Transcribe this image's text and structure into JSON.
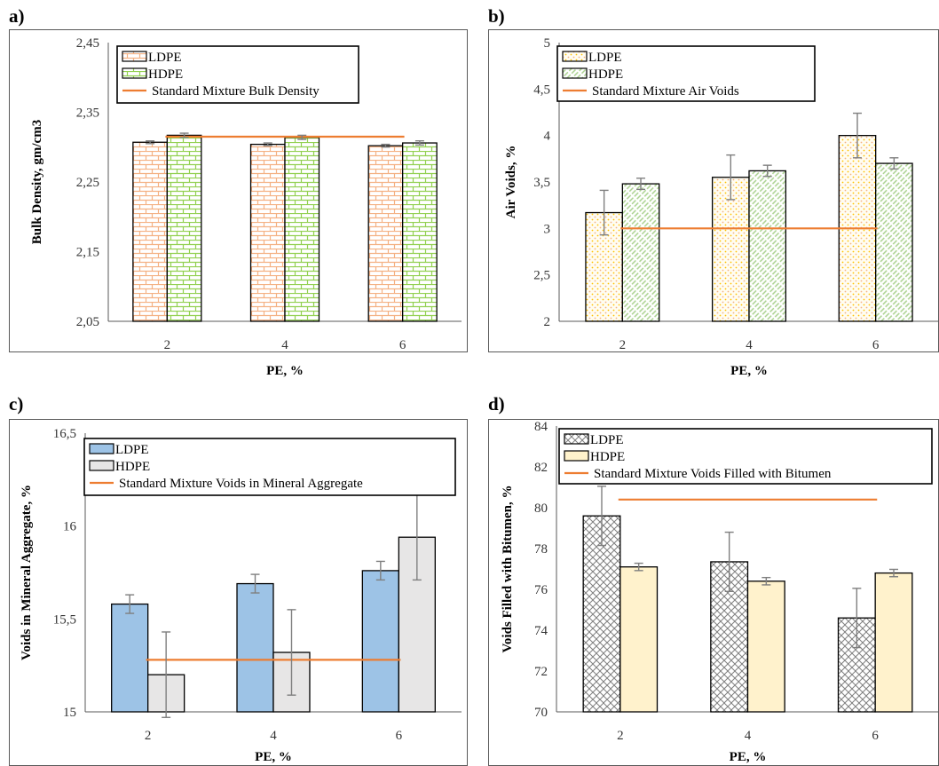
{
  "colors": {
    "standard_line": "#ED7D31",
    "error_bar": "#7f7f7f",
    "ldpe_brick": "#F4B183",
    "hdpe_brick": "#92D050",
    "ldpe_dots": "#FFC000",
    "hdpe_diag": "#A9D18E",
    "ldpe_blue": "#9DC3E6",
    "hdpe_grey": "#E7E6E6",
    "ldpe_net": "#7f7f7f",
    "hdpe_cream": "#FFF2CC"
  },
  "chart_data": [
    {
      "panel_label": "a)",
      "type": "bar",
      "categories": [
        "2",
        "4",
        "6"
      ],
      "xlabel": "PE, %",
      "ylabel": "Bulk Density, gm/cm3",
      "ylim": [
        2.05,
        2.45
      ],
      "yticks": [
        "2,05",
        "2,15",
        "2,25",
        "2,35",
        "2,45"
      ],
      "series": [
        {
          "name": "LDPE",
          "values": [
            2.307,
            2.304,
            2.302
          ],
          "errors": [
            0.002,
            0.002,
            0.002
          ],
          "pattern": "brick-orange"
        },
        {
          "name": "HDPE",
          "values": [
            2.317,
            2.314,
            2.306
          ],
          "errors": [
            0.003,
            0.003,
            0.003
          ],
          "pattern": "brick-green"
        }
      ],
      "reference_line": {
        "name": "Standard Mixture Bulk Density",
        "value": 2.315
      },
      "legend": "top-left"
    },
    {
      "panel_label": "b)",
      "type": "bar",
      "categories": [
        "2",
        "4",
        "6"
      ],
      "xlabel": "PE, %",
      "ylabel": "Air Voids, %",
      "ylim": [
        2,
        5
      ],
      "yticks": [
        "2",
        "2,5",
        "3",
        "3,5",
        "4",
        "4,5",
        "5"
      ],
      "series": [
        {
          "name": "LDPE",
          "values": [
            3.17,
            3.55,
            4.0
          ],
          "errors": [
            0.24,
            0.24,
            0.24
          ],
          "pattern": "dots-yellow"
        },
        {
          "name": "HDPE",
          "values": [
            3.48,
            3.62,
            3.7
          ],
          "errors": [
            0.06,
            0.06,
            0.06
          ],
          "pattern": "diag-green"
        }
      ],
      "reference_line": {
        "name": "Standard Mixture Air Voids",
        "value": 3.0
      },
      "legend": "top-left"
    },
    {
      "panel_label": "c)",
      "type": "bar",
      "categories": [
        "2",
        "4",
        "6"
      ],
      "xlabel": "PE, %",
      "ylabel": "Voids in Mineral Aggregate, %",
      "ylim": [
        15,
        16.5
      ],
      "yticks": [
        "15",
        "15,5",
        "16",
        "16,5"
      ],
      "series": [
        {
          "name": "LDPE",
          "values": [
            15.58,
            15.69,
            15.76
          ],
          "errors": [
            0.05,
            0.05,
            0.05
          ],
          "pattern": "solid-blue"
        },
        {
          "name": "HDPE",
          "values": [
            15.2,
            15.32,
            15.94
          ],
          "errors": [
            0.23,
            0.23,
            0.23
          ],
          "pattern": "solid-grey"
        }
      ],
      "reference_line": {
        "name": "Standard Mixture Voids in Mineral Aggregate",
        "value": 15.28
      },
      "legend": "top-left"
    },
    {
      "panel_label": "d)",
      "type": "bar",
      "categories": [
        "2",
        "4",
        "6"
      ],
      "xlabel": "PE, %",
      "ylabel": "Voids Filled with Bitumen, %",
      "ylim": [
        70,
        84
      ],
      "yticks": [
        "70",
        "72",
        "74",
        "76",
        "78",
        "80",
        "82",
        "84"
      ],
      "series": [
        {
          "name": "LDPE",
          "values": [
            79.6,
            77.35,
            74.6
          ],
          "errors": [
            1.45,
            1.45,
            1.45
          ],
          "pattern": "net-grey"
        },
        {
          "name": "HDPE",
          "values": [
            77.1,
            76.4,
            76.8
          ],
          "errors": [
            0.18,
            0.18,
            0.18
          ],
          "pattern": "solid-cream"
        }
      ],
      "reference_line": {
        "name": "Standard Mixture Voids Filled with Bitumen",
        "value": 80.4
      },
      "legend": "top-left"
    }
  ]
}
